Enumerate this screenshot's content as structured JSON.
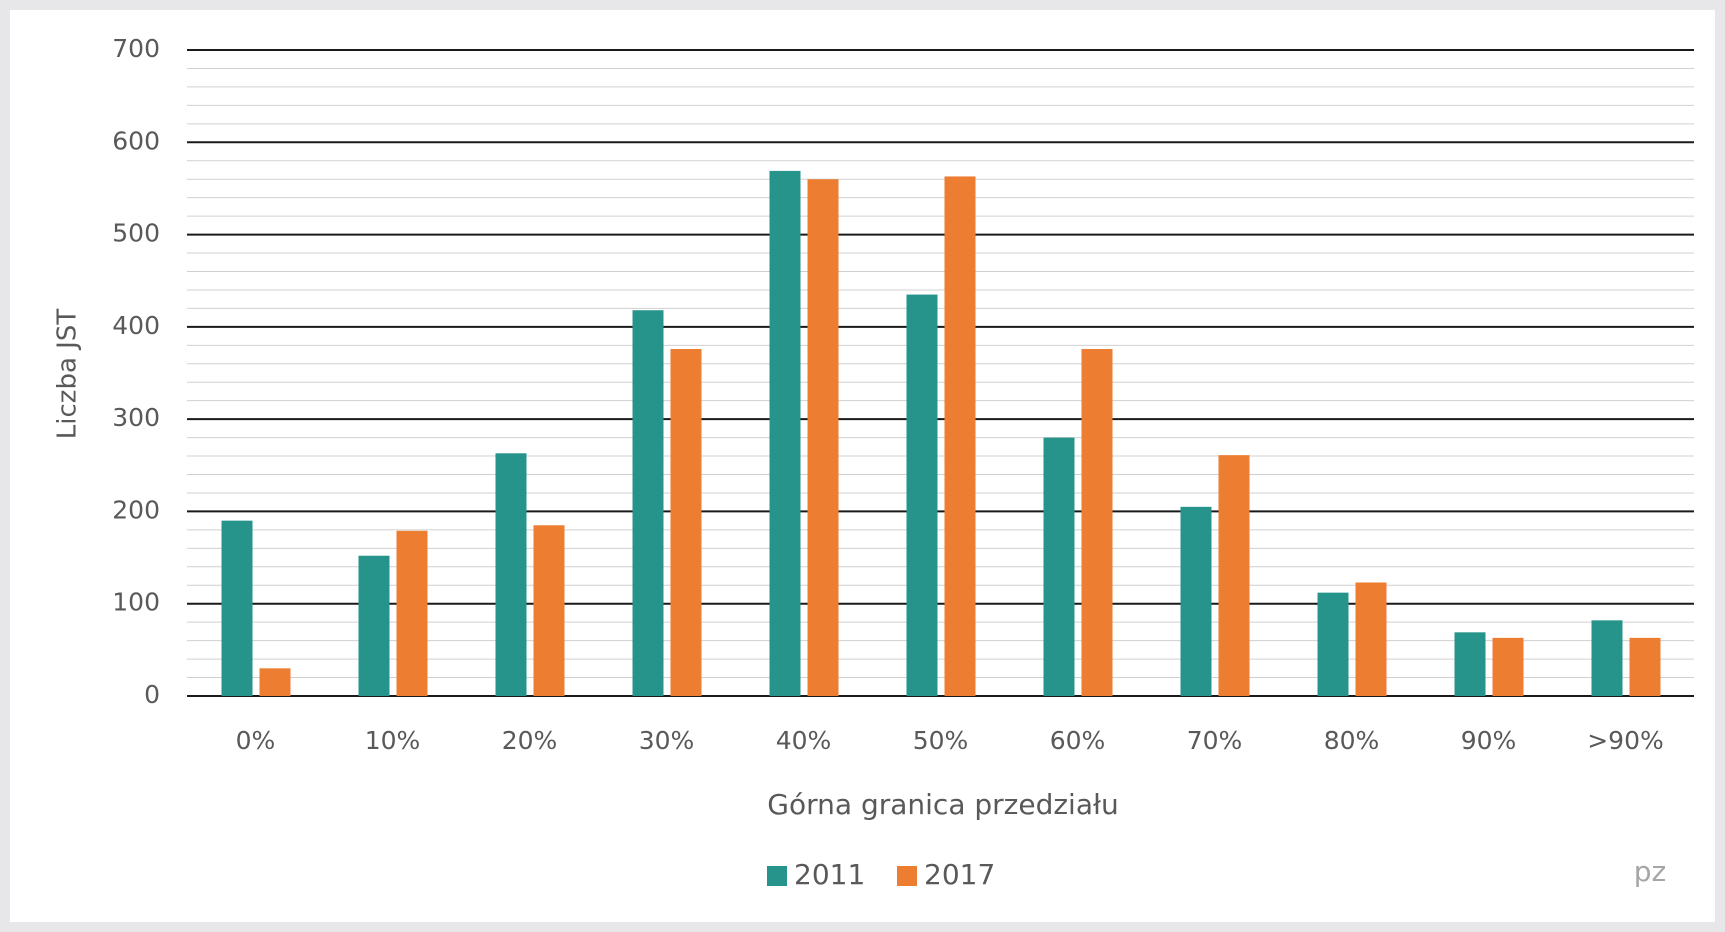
{
  "chart_data": {
    "type": "bar",
    "categories": [
      "0%",
      "10%",
      "20%",
      "30%",
      "40%",
      "50%",
      "60%",
      "70%",
      "80%",
      "90%",
      ">90%"
    ],
    "series": [
      {
        "name": "2011",
        "color": "#26948b",
        "values": [
          190,
          152,
          263,
          418,
          569,
          435,
          280,
          205,
          112,
          69,
          82
        ]
      },
      {
        "name": "2017",
        "color": "#ed7d31",
        "values": [
          30,
          179,
          185,
          376,
          560,
          563,
          376,
          261,
          123,
          63,
          63
        ]
      }
    ],
    "xlabel": "Górna granica przedziału",
    "ylabel": "Liczba JST",
    "annotation": "pz",
    "ylim": [
      0,
      700
    ],
    "yticks": [
      0,
      100,
      200,
      300,
      400,
      500,
      600,
      700
    ],
    "grid": true,
    "minor_grid": true,
    "legend": "bottom"
  }
}
